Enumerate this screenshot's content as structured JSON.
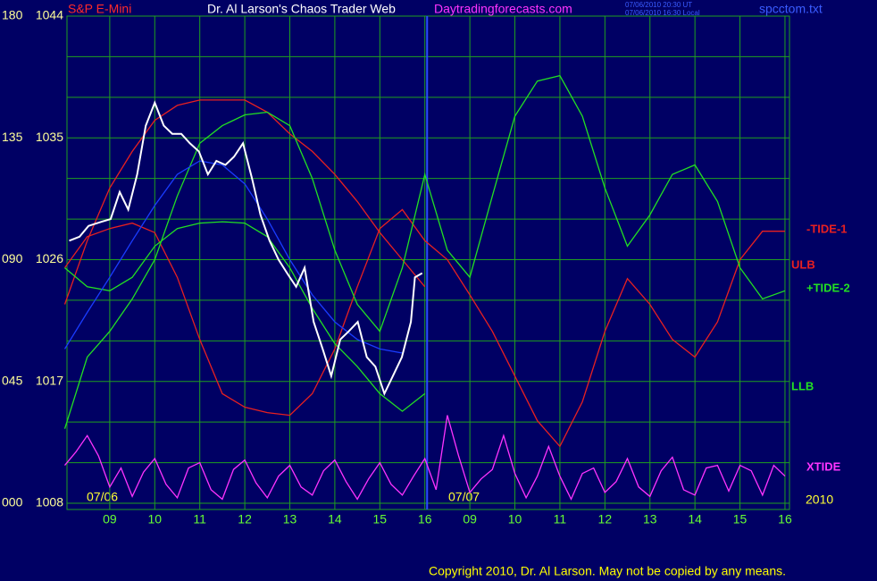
{
  "chart_data": {
    "type": "line",
    "symbol": "S&P E-Mini",
    "title": "Dr. Al Larson's Chaos Trader Web",
    "site": "Daytradingforecasts.com",
    "timestamps": [
      "07/06/2010 20:30 UT",
      "07/06/2010 16:30 Local"
    ],
    "filename": "spcctom.txt",
    "copyright": "Copyright 2010, Dr. Al Larson. May not be copied by any means.",
    "date_labels": [
      "07/06",
      "07/07",
      "2010"
    ],
    "xlim": [
      0.05,
      16.1
    ],
    "xticks": [
      {
        "value": 1,
        "label": "09"
      },
      {
        "value": 2,
        "label": "10"
      },
      {
        "value": 3,
        "label": "11"
      },
      {
        "value": 4,
        "label": "12"
      },
      {
        "value": 5,
        "label": "13"
      },
      {
        "value": 6,
        "label": "14"
      },
      {
        "value": 7,
        "label": "15"
      },
      {
        "value": 8,
        "label": "16"
      },
      {
        "value": 9,
        "label": "09"
      },
      {
        "value": 10,
        "label": "10"
      },
      {
        "value": 11,
        "label": "11"
      },
      {
        "value": 12,
        "label": "12"
      },
      {
        "value": 13,
        "label": "13"
      },
      {
        "value": 14,
        "label": "14"
      },
      {
        "value": 15,
        "label": "15"
      },
      {
        "value": 16,
        "label": "16"
      }
    ],
    "ylim": [
      1008,
      1044
    ],
    "yticks": [
      1008,
      1017,
      1026,
      1035,
      1044
    ],
    "ygrid": [
      1008,
      1011,
      1014,
      1017,
      1020,
      1023,
      1026,
      1029,
      1032,
      1035,
      1038,
      1041,
      1044
    ],
    "y2lim": [
      0,
      180
    ],
    "y2ticks": [
      {
        "value": 0,
        "label": "000"
      },
      {
        "value": 45,
        "label": "045"
      },
      {
        "value": 90,
        "label": "090"
      },
      135,
      180
    ],
    "now_x": 8.05,
    "grid": true,
    "x": [
      0,
      0.5,
      1,
      1.5,
      2,
      2.5,
      3,
      3.5,
      4,
      4.5,
      5,
      5.5,
      6,
      6.5,
      7,
      7.5,
      8,
      8.5,
      9,
      9.5,
      10,
      10.5,
      11,
      11.5,
      12,
      12.5,
      13,
      13.5,
      14,
      14.5,
      15,
      15.5,
      16
    ],
    "series": [
      {
        "name": "-TIDE-1",
        "color": "#e82020",
        "values": [
          1025.4,
          1027.7,
          1028.3,
          1028.7,
          1028.0,
          1024.7,
          1020.1,
          1016.1,
          1015.1,
          1014.7,
          1014.5,
          1016.1,
          1019.4,
          1024.0,
          1028.3,
          1029.7,
          1027.4,
          1026.0,
          1023.4,
          1020.7,
          1017.4,
          1014.1,
          1012.2,
          1015.5,
          1020.7,
          1024.6,
          1022.7,
          1020.1,
          1018.8,
          1021.4,
          1026.0,
          1028.1,
          1028.1
        ]
      },
      {
        "name": "ULB",
        "color": "#e82020",
        "values": [
          1022.7,
          1027.4,
          1031.3,
          1034.0,
          1036.3,
          1037.4,
          1037.8,
          1037.8,
          1037.8,
          1036.9,
          1035.3,
          1034.0,
          1032.3,
          1030.3,
          1028.0,
          1026.0,
          1024.0,
          null,
          null,
          null,
          null,
          null,
          null,
          null,
          null,
          null,
          null,
          null,
          null,
          null,
          null,
          null,
          null
        ]
      },
      {
        "name": "+TIDE-2",
        "color": "#22e022",
        "values": [
          1013.5,
          1018.8,
          1020.7,
          1023.1,
          1026.0,
          1030.7,
          1034.6,
          1035.9,
          1036.7,
          1036.9,
          1035.9,
          1032.0,
          1026.7,
          1022.7,
          1020.7,
          1025.4,
          1032.3,
          1026.7,
          1024.7,
          1030.7,
          1036.6,
          1039.2,
          1039.6,
          1036.6,
          1031.3,
          1027.0,
          1029.3,
          1032.3,
          1033.0,
          1030.3,
          1025.4,
          1023.1,
          1023.7
        ]
      },
      {
        "name": "LLB",
        "color": "#22e022",
        "values": [
          1025.4,
          1024.0,
          1023.7,
          1024.7,
          1027.0,
          1028.3,
          1028.7,
          1028.8,
          1028.7,
          1027.7,
          1025.4,
          1022.4,
          1019.8,
          1018.1,
          1016.1,
          1014.8,
          1016.1,
          null,
          null,
          null,
          null,
          null,
          null,
          null,
          null,
          null,
          null,
          null,
          null,
          null,
          null,
          null,
          null
        ]
      },
      {
        "name": "XTIDE",
        "color": "#ff33ff",
        "x": [
          0,
          0.25,
          0.5,
          0.75,
          1,
          1.25,
          1.5,
          1.75,
          2,
          2.25,
          2.5,
          2.75,
          3,
          3.25,
          3.5,
          3.75,
          4,
          4.25,
          4.5,
          4.75,
          5,
          5.25,
          5.5,
          5.75,
          6,
          6.25,
          6.5,
          6.75,
          7,
          7.25,
          7.5,
          7.75,
          8,
          8.25,
          8.5,
          8.75,
          9,
          9.25,
          9.5,
          9.75,
          10,
          10.25,
          10.5,
          10.75,
          11,
          11.25,
          11.5,
          11.75,
          12,
          12.25,
          12.5,
          12.75,
          13,
          13.25,
          13.5,
          13.75,
          14,
          14.25,
          14.5,
          14.75,
          15,
          15.25,
          15.5,
          15.75,
          16
        ],
        "values": [
          1010.8,
          1011.8,
          1013.0,
          1011.5,
          1009.2,
          1010.6,
          1008.5,
          1010.3,
          1011.3,
          1009.4,
          1008.4,
          1010.6,
          1011.0,
          1009.0,
          1008.3,
          1010.5,
          1011.2,
          1009.5,
          1008.4,
          1010.0,
          1010.8,
          1009.2,
          1008.6,
          1010.4,
          1011.2,
          1009.6,
          1008.3,
          1009.8,
          1011.0,
          1009.4,
          1008.6,
          1010.0,
          1011.3,
          1009.0,
          1014.5,
          1011.5,
          1008.8,
          1009.8,
          1010.5,
          1013.0,
          1010.2,
          1008.4,
          1010.0,
          1012.2,
          1010.0,
          1008.3,
          1010.2,
          1010.6,
          1008.8,
          1009.6,
          1011.3,
          1009.2,
          1008.5,
          1010.4,
          1011.4,
          1009.0,
          1008.6,
          1010.6,
          1010.8,
          1008.9,
          1010.8,
          1010.4,
          1008.6,
          1010.8,
          1010.0
        ]
      },
      {
        "color": "#1a3cff",
        "values": [
          1019.4,
          1022.1,
          1024.7,
          1027.4,
          1030.0,
          1032.3,
          1033.3,
          1033.0,
          1031.6,
          1029.0,
          1026.0,
          1023.4,
          1021.4,
          1020.1,
          1019.4,
          1019.1,
          null,
          null,
          null,
          null,
          null,
          null,
          null,
          null,
          null,
          null,
          null,
          null,
          null,
          null,
          null,
          null,
          null
        ]
      },
      {
        "color": "#ffffff",
        "x": [
          0.1,
          0.33,
          0.53,
          0.82,
          1.02,
          1.22,
          1.41,
          1.61,
          1.8,
          2.0,
          2.2,
          2.39,
          2.59,
          2.78,
          2.98,
          3.18,
          3.37,
          3.57,
          3.76,
          3.96,
          4.16,
          4.35,
          4.55,
          4.75,
          4.94,
          5.14,
          5.33,
          5.53,
          5.73,
          5.92,
          6.12,
          6.31,
          6.51,
          6.71,
          6.9,
          7.1,
          7.29,
          7.49,
          7.69,
          7.78,
          7.94
        ],
        "values": [
          1027.4,
          1027.7,
          1028.5,
          1028.8,
          1029.0,
          1031.0,
          1029.7,
          1032.3,
          1035.9,
          1037.6,
          1035.9,
          1035.3,
          1035.3,
          1034.6,
          1034.0,
          1032.3,
          1033.3,
          1033.0,
          1033.6,
          1034.6,
          1032.0,
          1029.3,
          1027.4,
          1026.0,
          1025.0,
          1024.0,
          1025.4,
          1021.4,
          1019.4,
          1017.4,
          1020.1,
          1020.7,
          1021.4,
          1018.8,
          1018.1,
          1016.1,
          1017.4,
          1018.8,
          1021.4,
          1024.7,
          1025.0
        ]
      }
    ]
  }
}
